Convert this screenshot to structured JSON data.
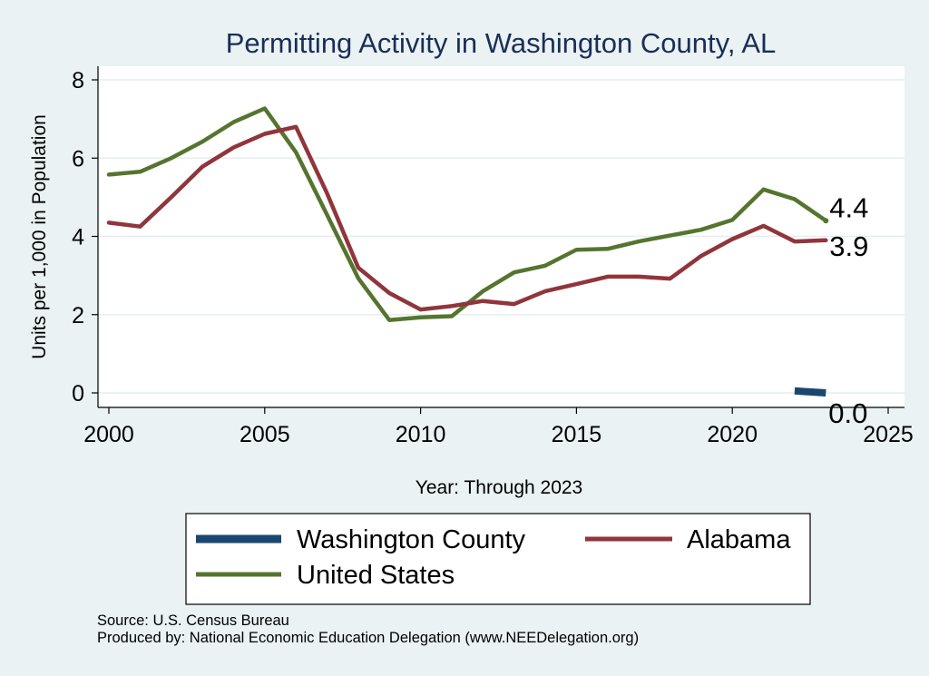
{
  "chart_data": {
    "type": "line",
    "title": "Permitting Activity in Washington County, AL",
    "xlabel": "Year: Through 2023",
    "ylabel": "Units per 1,000 in Population",
    "xlim": [
      2000,
      2025
    ],
    "ylim": [
      0,
      8
    ],
    "x_ticks": [
      2000,
      2005,
      2010,
      2015,
      2020,
      2025
    ],
    "y_ticks": [
      0,
      2,
      4,
      6,
      8
    ],
    "x_tick_labels": [
      "2000",
      "2005",
      "2010",
      "2015",
      "2020",
      "2025"
    ],
    "y_tick_labels": [
      "0",
      "2",
      "4",
      "6",
      "8"
    ],
    "grid": true,
    "legend_position": "bottom",
    "series": [
      {
        "name": "Washington County",
        "color": "#1a476f",
        "x": [
          2022,
          2023
        ],
        "values": [
          0.05,
          0.0
        ],
        "end_label": "0.0"
      },
      {
        "name": "Alabama",
        "color": "#90353b",
        "x": [
          2000,
          2001,
          2002,
          2003,
          2004,
          2005,
          2006,
          2007,
          2008,
          2009,
          2010,
          2011,
          2012,
          2013,
          2014,
          2015,
          2016,
          2017,
          2018,
          2019,
          2020,
          2021,
          2022,
          2023
        ],
        "values": [
          4.35,
          4.25,
          5.0,
          5.78,
          6.27,
          6.62,
          6.8,
          5.1,
          3.2,
          2.55,
          2.13,
          2.22,
          2.35,
          2.27,
          2.6,
          2.78,
          2.97,
          2.97,
          2.92,
          3.5,
          3.93,
          4.27,
          3.87,
          3.9
        ],
        "end_label": "3.9"
      },
      {
        "name": "United States",
        "color": "#55752f",
        "x": [
          2000,
          2001,
          2002,
          2003,
          2004,
          2005,
          2006,
          2007,
          2008,
          2009,
          2010,
          2011,
          2012,
          2013,
          2014,
          2015,
          2016,
          2017,
          2018,
          2019,
          2020,
          2021,
          2022,
          2023
        ],
        "values": [
          5.58,
          5.65,
          6.0,
          6.42,
          6.92,
          7.27,
          6.15,
          4.55,
          2.93,
          1.86,
          1.93,
          1.96,
          2.6,
          3.08,
          3.25,
          3.66,
          3.68,
          3.87,
          4.02,
          4.17,
          4.42,
          5.2,
          4.95,
          4.4
        ],
        "end_label": "4.4"
      }
    ]
  },
  "legend": {
    "items": [
      {
        "label": "Washington County",
        "color": "#1a476f"
      },
      {
        "label": "Alabama",
        "color": "#90353b"
      },
      {
        "label": "United States",
        "color": "#55752f"
      }
    ]
  },
  "footer": {
    "source": "Source: U.S. Census Bureau",
    "produced_by": "Produced by: National Economic Education Delegation (www.NEEDelegation.org)"
  },
  "colors": {
    "background": "#eaf2f3",
    "plot_background": "#ffffff",
    "grid": "#e6eeef",
    "title": "#1a2e57"
  }
}
